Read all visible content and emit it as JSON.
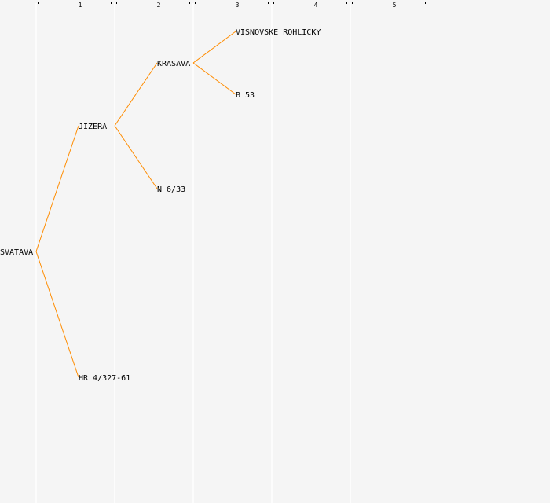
{
  "columns": [
    "1",
    "2",
    "3",
    "4",
    "5"
  ],
  "nodes": [
    {
      "id": "svatava",
      "label": "SVATAVA",
      "generation": 0
    },
    {
      "id": "jizera",
      "label": "JIZERA",
      "generation": 1,
      "parent": "svatava"
    },
    {
      "id": "hr",
      "label": "HR 4/327-61",
      "generation": 1,
      "parent": "svatava"
    },
    {
      "id": "krasava",
      "label": "KRASAVA",
      "generation": 2,
      "parent": "jizera"
    },
    {
      "id": "n633",
      "label": "N 6/33",
      "generation": 2,
      "parent": "jizera"
    },
    {
      "id": "visnovske",
      "label": "VISNOVSKE ROHLICKY",
      "generation": 3,
      "parent": "krasava"
    },
    {
      "id": "b53",
      "label": "B 53",
      "generation": 3,
      "parent": "krasava"
    }
  ],
  "colors": {
    "edge": "#ff8c00",
    "background": "#f5f5f5",
    "column_line": "#ffffff"
  }
}
